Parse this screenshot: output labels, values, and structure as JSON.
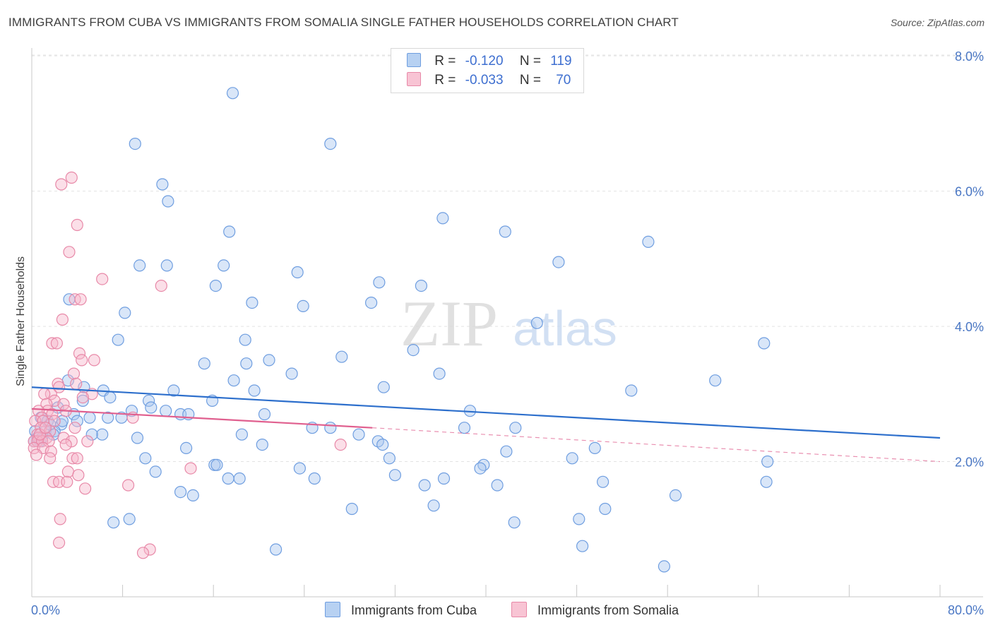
{
  "header": {
    "title": "IMMIGRANTS FROM CUBA VS IMMIGRANTS FROM SOMALIA SINGLE FATHER HOUSEHOLDS CORRELATION CHART",
    "source": "Source: ZipAtlas.com"
  },
  "watermark": {
    "zip": "ZIP",
    "atlas": "atlas"
  },
  "legend": {
    "cuba": {
      "r_label": "R =",
      "r_value": "-0.120",
      "n_label": "N =",
      "n_value": "119"
    },
    "somalia": {
      "r_label": "R =",
      "r_value": "-0.033",
      "n_label": "N =",
      "n_value": "70"
    }
  },
  "colors": {
    "cuba_fill": "#aac8f0",
    "cuba_stroke": "#6f9ee0",
    "cuba_line": "#2d6fcc",
    "somalia_fill": "#f7b8cc",
    "somalia_stroke": "#e889a8",
    "somalia_line": "#e0608f",
    "tick_text": "#4a77c4",
    "grid": "#e3e3e3"
  },
  "chart_data": {
    "type": "scatter",
    "title": "IMMIGRANTS FROM CUBA VS IMMIGRANTS FROM SOMALIA SINGLE FATHER HOUSEHOLDS CORRELATION CHART",
    "xlabel": "",
    "ylabel": "Single Father Households",
    "xlim": [
      0,
      80
    ],
    "ylim": [
      0,
      8.2
    ],
    "x_tick_labels": [
      "0.0%",
      "80.0%"
    ],
    "y_ticks": [
      2,
      4,
      6,
      8
    ],
    "y_tick_labels": [
      "2.0%",
      "4.0%",
      "6.0%",
      "8.0%"
    ],
    "grid": true,
    "legend_position": "top-center",
    "series": [
      {
        "name": "Immigrants from Cuba",
        "r": -0.12,
        "n": 119,
        "trend": {
          "x": [
            0,
            80
          ],
          "y": [
            3.1,
            2.35
          ]
        },
        "points": [
          [
            17.7,
            7.45
          ],
          [
            9.1,
            6.7
          ],
          [
            26.3,
            6.7
          ],
          [
            11.5,
            6.1
          ],
          [
            12.0,
            5.85
          ],
          [
            36.2,
            5.6
          ],
          [
            17.4,
            5.4
          ],
          [
            41.7,
            5.4
          ],
          [
            54.3,
            5.25
          ],
          [
            9.5,
            4.9
          ],
          [
            11.9,
            4.9
          ],
          [
            16.9,
            4.9
          ],
          [
            23.4,
            4.8
          ],
          [
            46.4,
            4.95
          ],
          [
            16.2,
            4.6
          ],
          [
            30.6,
            4.65
          ],
          [
            34.3,
            4.6
          ],
          [
            3.3,
            4.4
          ],
          [
            19.4,
            4.35
          ],
          [
            23.9,
            4.3
          ],
          [
            29.9,
            4.35
          ],
          [
            8.2,
            4.2
          ],
          [
            44.5,
            4.05
          ],
          [
            7.6,
            3.8
          ],
          [
            18.8,
            3.8
          ],
          [
            33.6,
            3.65
          ],
          [
            64.5,
            3.75
          ],
          [
            27.3,
            3.55
          ],
          [
            15.2,
            3.45
          ],
          [
            18.9,
            3.45
          ],
          [
            20.9,
            3.5
          ],
          [
            22.9,
            3.3
          ],
          [
            35.9,
            3.3
          ],
          [
            17.8,
            3.2
          ],
          [
            3.2,
            3.2
          ],
          [
            31.0,
            3.1
          ],
          [
            4.6,
            3.1
          ],
          [
            12.5,
            3.05
          ],
          [
            6.3,
            3.05
          ],
          [
            19.6,
            3.05
          ],
          [
            52.8,
            3.05
          ],
          [
            60.2,
            3.2
          ],
          [
            6.9,
            2.95
          ],
          [
            4.5,
            2.9
          ],
          [
            15.9,
            2.9
          ],
          [
            10.3,
            2.9
          ],
          [
            10.5,
            2.8
          ],
          [
            2.3,
            2.8
          ],
          [
            11.8,
            2.75
          ],
          [
            8.8,
            2.75
          ],
          [
            13.1,
            2.7
          ],
          [
            13.8,
            2.7
          ],
          [
            20.5,
            2.7
          ],
          [
            38.6,
            2.75
          ],
          [
            3.7,
            2.7
          ],
          [
            0.8,
            2.65
          ],
          [
            5.1,
            2.65
          ],
          [
            6.7,
            2.65
          ],
          [
            7.9,
            2.65
          ],
          [
            4.0,
            2.6
          ],
          [
            24.7,
            2.5
          ],
          [
            26.3,
            2.5
          ],
          [
            38.1,
            2.5
          ],
          [
            42.6,
            2.5
          ],
          [
            1.4,
            2.6
          ],
          [
            2.6,
            2.55
          ],
          [
            0.3,
            2.45
          ],
          [
            1.2,
            2.45
          ],
          [
            2.0,
            2.45
          ],
          [
            6.2,
            2.4
          ],
          [
            18.5,
            2.4
          ],
          [
            28.8,
            2.4
          ],
          [
            30.5,
            2.3
          ],
          [
            5.3,
            2.4
          ],
          [
            9.3,
            2.35
          ],
          [
            1.9,
            2.4
          ],
          [
            30.9,
            2.25
          ],
          [
            13.6,
            2.2
          ],
          [
            20.3,
            2.25
          ],
          [
            41.8,
            2.15
          ],
          [
            49.6,
            2.2
          ],
          [
            0.5,
            2.35
          ],
          [
            0.7,
            2.3
          ],
          [
            31.5,
            2.05
          ],
          [
            10.0,
            2.05
          ],
          [
            47.6,
            2.05
          ],
          [
            64.8,
            2.0
          ],
          [
            16.1,
            1.95
          ],
          [
            39.8,
            1.95
          ],
          [
            39.5,
            1.9
          ],
          [
            16.3,
            1.95
          ],
          [
            23.6,
            1.9
          ],
          [
            10.9,
            1.85
          ],
          [
            17.3,
            1.75
          ],
          [
            18.3,
            1.75
          ],
          [
            24.9,
            1.75
          ],
          [
            32.0,
            1.8
          ],
          [
            36.3,
            1.75
          ],
          [
            41.0,
            1.65
          ],
          [
            64.7,
            1.7
          ],
          [
            13.1,
            1.55
          ],
          [
            14.2,
            1.5
          ],
          [
            34.6,
            1.65
          ],
          [
            50.3,
            1.7
          ],
          [
            56.7,
            1.5
          ],
          [
            28.2,
            1.3
          ],
          [
            35.4,
            1.35
          ],
          [
            42.5,
            1.1
          ],
          [
            48.2,
            1.15
          ],
          [
            50.5,
            1.3
          ],
          [
            7.2,
            1.1
          ],
          [
            8.6,
            1.15
          ],
          [
            21.5,
            0.7
          ],
          [
            48.5,
            0.75
          ],
          [
            55.7,
            0.45
          ],
          [
            0.2,
            2.3
          ],
          [
            0.9,
            2.35
          ],
          [
            1.6,
            2.55
          ],
          [
            2.7,
            2.6
          ]
        ]
      },
      {
        "name": "Immigrants from Somalia",
        "r": -0.033,
        "n": 70,
        "trend": {
          "x": [
            0,
            30
          ],
          "y": [
            2.78,
            2.5
          ]
        },
        "trend_extended": {
          "x": [
            30,
            80
          ],
          "y": [
            2.5,
            2.0
          ]
        },
        "points": [
          [
            3.5,
            6.2
          ],
          [
            2.6,
            6.1
          ],
          [
            4.0,
            5.5
          ],
          [
            3.3,
            5.1
          ],
          [
            6.2,
            4.7
          ],
          [
            11.4,
            4.6
          ],
          [
            3.8,
            4.4
          ],
          [
            4.3,
            4.4
          ],
          [
            2.7,
            4.1
          ],
          [
            1.8,
            3.75
          ],
          [
            2.2,
            3.75
          ],
          [
            4.2,
            3.6
          ],
          [
            5.5,
            3.5
          ],
          [
            4.4,
            3.5
          ],
          [
            3.7,
            3.3
          ],
          [
            2.3,
            3.15
          ],
          [
            2.4,
            3.1
          ],
          [
            3.9,
            3.15
          ],
          [
            1.7,
            3.0
          ],
          [
            1.1,
            3.0
          ],
          [
            5.3,
            3.0
          ],
          [
            2.0,
            2.9
          ],
          [
            4.5,
            2.95
          ],
          [
            1.3,
            2.85
          ],
          [
            2.8,
            2.85
          ],
          [
            1.4,
            2.75
          ],
          [
            0.6,
            2.75
          ],
          [
            3.0,
            2.75
          ],
          [
            1.8,
            2.7
          ],
          [
            0.9,
            2.65
          ],
          [
            8.9,
            2.65
          ],
          [
            0.3,
            2.6
          ],
          [
            1.0,
            2.6
          ],
          [
            2.0,
            2.6
          ],
          [
            0.8,
            2.5
          ],
          [
            3.8,
            2.5
          ],
          [
            1.6,
            2.45
          ],
          [
            0.5,
            2.4
          ],
          [
            0.6,
            2.35
          ],
          [
            1.3,
            2.35
          ],
          [
            0.2,
            2.3
          ],
          [
            2.8,
            2.35
          ],
          [
            0.5,
            2.3
          ],
          [
            0.9,
            2.3
          ],
          [
            3.5,
            2.3
          ],
          [
            4.9,
            2.3
          ],
          [
            1.5,
            2.3
          ],
          [
            27.2,
            2.25
          ],
          [
            0.2,
            2.2
          ],
          [
            1.0,
            2.2
          ],
          [
            3.0,
            2.25
          ],
          [
            1.7,
            2.15
          ],
          [
            0.4,
            2.1
          ],
          [
            1.6,
            2.05
          ],
          [
            3.6,
            2.05
          ],
          [
            4.0,
            2.05
          ],
          [
            14.0,
            1.9
          ],
          [
            3.2,
            1.85
          ],
          [
            4.1,
            1.8
          ],
          [
            1.9,
            1.7
          ],
          [
            2.4,
            1.7
          ],
          [
            3.1,
            1.7
          ],
          [
            8.5,
            1.65
          ],
          [
            4.7,
            1.6
          ],
          [
            2.5,
            1.15
          ],
          [
            2.4,
            0.8
          ],
          [
            10.4,
            0.7
          ],
          [
            9.8,
            0.65
          ],
          [
            0.7,
            2.4
          ],
          [
            1.2,
            2.5
          ]
        ]
      }
    ]
  },
  "bottom_legend": {
    "cuba_label": "Immigrants from Cuba",
    "somalia_label": "Immigrants from Somalia"
  }
}
